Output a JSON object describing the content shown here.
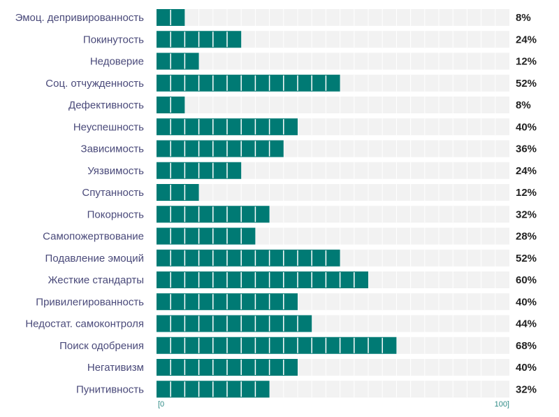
{
  "chart_data": {
    "type": "bar",
    "orientation": "horizontal",
    "categories": [
      "Эмоц. депривированность",
      "Покинутость",
      "Недоверие",
      "Соц. отчужденность",
      "Дефективность",
      "Неуспешность",
      "Зависимость",
      "Уязвимость",
      "Спутанность",
      "Покорность",
      "Самопожертвование",
      "Подавление эмоций",
      "Жесткие стандарты",
      "Привилегированность",
      "Недостат. самоконтроля",
      "Поиск одобрения",
      "Негативизм",
      "Пунитивность"
    ],
    "values": [
      8,
      24,
      12,
      52,
      8,
      40,
      36,
      24,
      12,
      32,
      28,
      52,
      60,
      40,
      44,
      68,
      40,
      32
    ],
    "value_labels": [
      "8%",
      "24%",
      "12%",
      "52%",
      "8%",
      "40%",
      "36%",
      "24%",
      "12%",
      "32%",
      "28%",
      "52%",
      "60%",
      "40%",
      "44%",
      "68%",
      "40%",
      "32%"
    ],
    "xlim": [
      0,
      100
    ],
    "axis_min_label": "[0",
    "axis_max_label": "100]",
    "segment_step": 4,
    "colors": {
      "bar": "#007a74",
      "track": "#f2f2f2",
      "segment_divider": "#ffffff",
      "track_divider": "#ffffff",
      "category_text": "#4a4a7a",
      "value_text": "#222222",
      "axis_text": "#2e8b86"
    }
  }
}
